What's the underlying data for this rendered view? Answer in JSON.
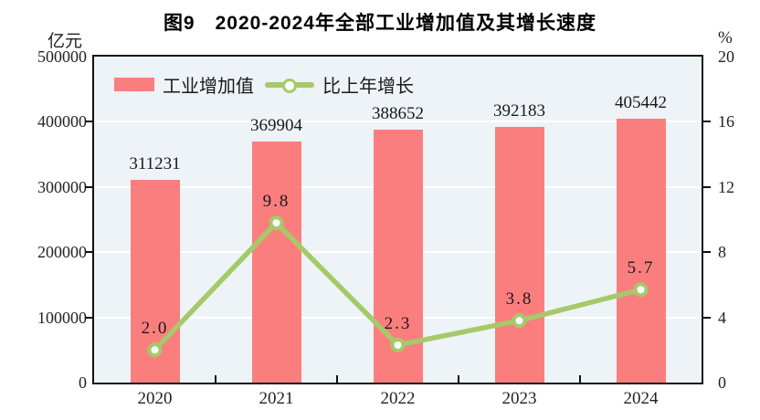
{
  "title": "图9　2020-2024年全部工业增加值及其增长速度",
  "chart_data": {
    "type": "bar",
    "subtype": "bar-line-combo",
    "title": "图9　2020-2024年全部工业增加值及其增长速度",
    "categories": [
      "2020",
      "2021",
      "2022",
      "2023",
      "2024"
    ],
    "series": [
      {
        "name": "工业增加值",
        "type": "bar",
        "axis": "left",
        "unit": "亿元",
        "values": [
          311231,
          369904,
          388652,
          392183,
          405442
        ],
        "labels": [
          "311231",
          "369904",
          "388652",
          "392183",
          "405442"
        ],
        "color": "#fb7e7e"
      },
      {
        "name": "比上年增长",
        "type": "line",
        "axis": "right",
        "unit": "%",
        "values": [
          2.0,
          9.8,
          2.3,
          3.8,
          5.7
        ],
        "labels": [
          "2.0",
          "9.8",
          "2.3",
          "3.8",
          "5.7"
        ],
        "color": "#a6c969",
        "marker": "open-circle-white"
      }
    ],
    "left_axis": {
      "unit": "亿元",
      "min": 0,
      "max": 500000,
      "tick_step": 100000,
      "tick_labels": [
        "500000",
        "400000",
        "300000",
        "200000",
        "100000",
        "0"
      ]
    },
    "right_axis": {
      "unit": "%",
      "min": 0,
      "max": 20,
      "tick_step": 4,
      "tick_labels": [
        "20",
        "16",
        "12",
        "8",
        "4",
        "0"
      ]
    },
    "grid": true,
    "grid_color": "#ffffff",
    "plot_background": "#edf3f6",
    "legend_position": "top-left-inside"
  }
}
